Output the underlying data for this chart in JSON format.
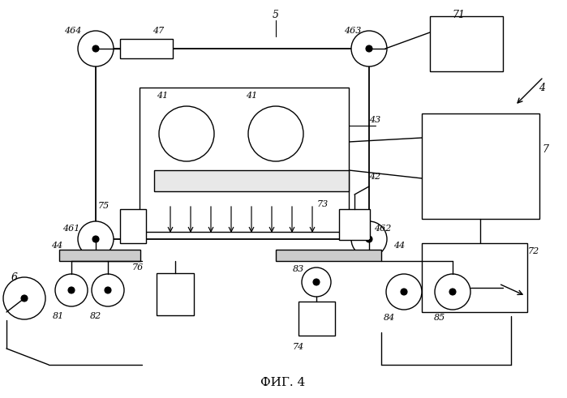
{
  "title": "ФИГ. 4",
  "bg_color": "#ffffff",
  "figsize": [
    6.99,
    4.91
  ],
  "dpi": 100
}
